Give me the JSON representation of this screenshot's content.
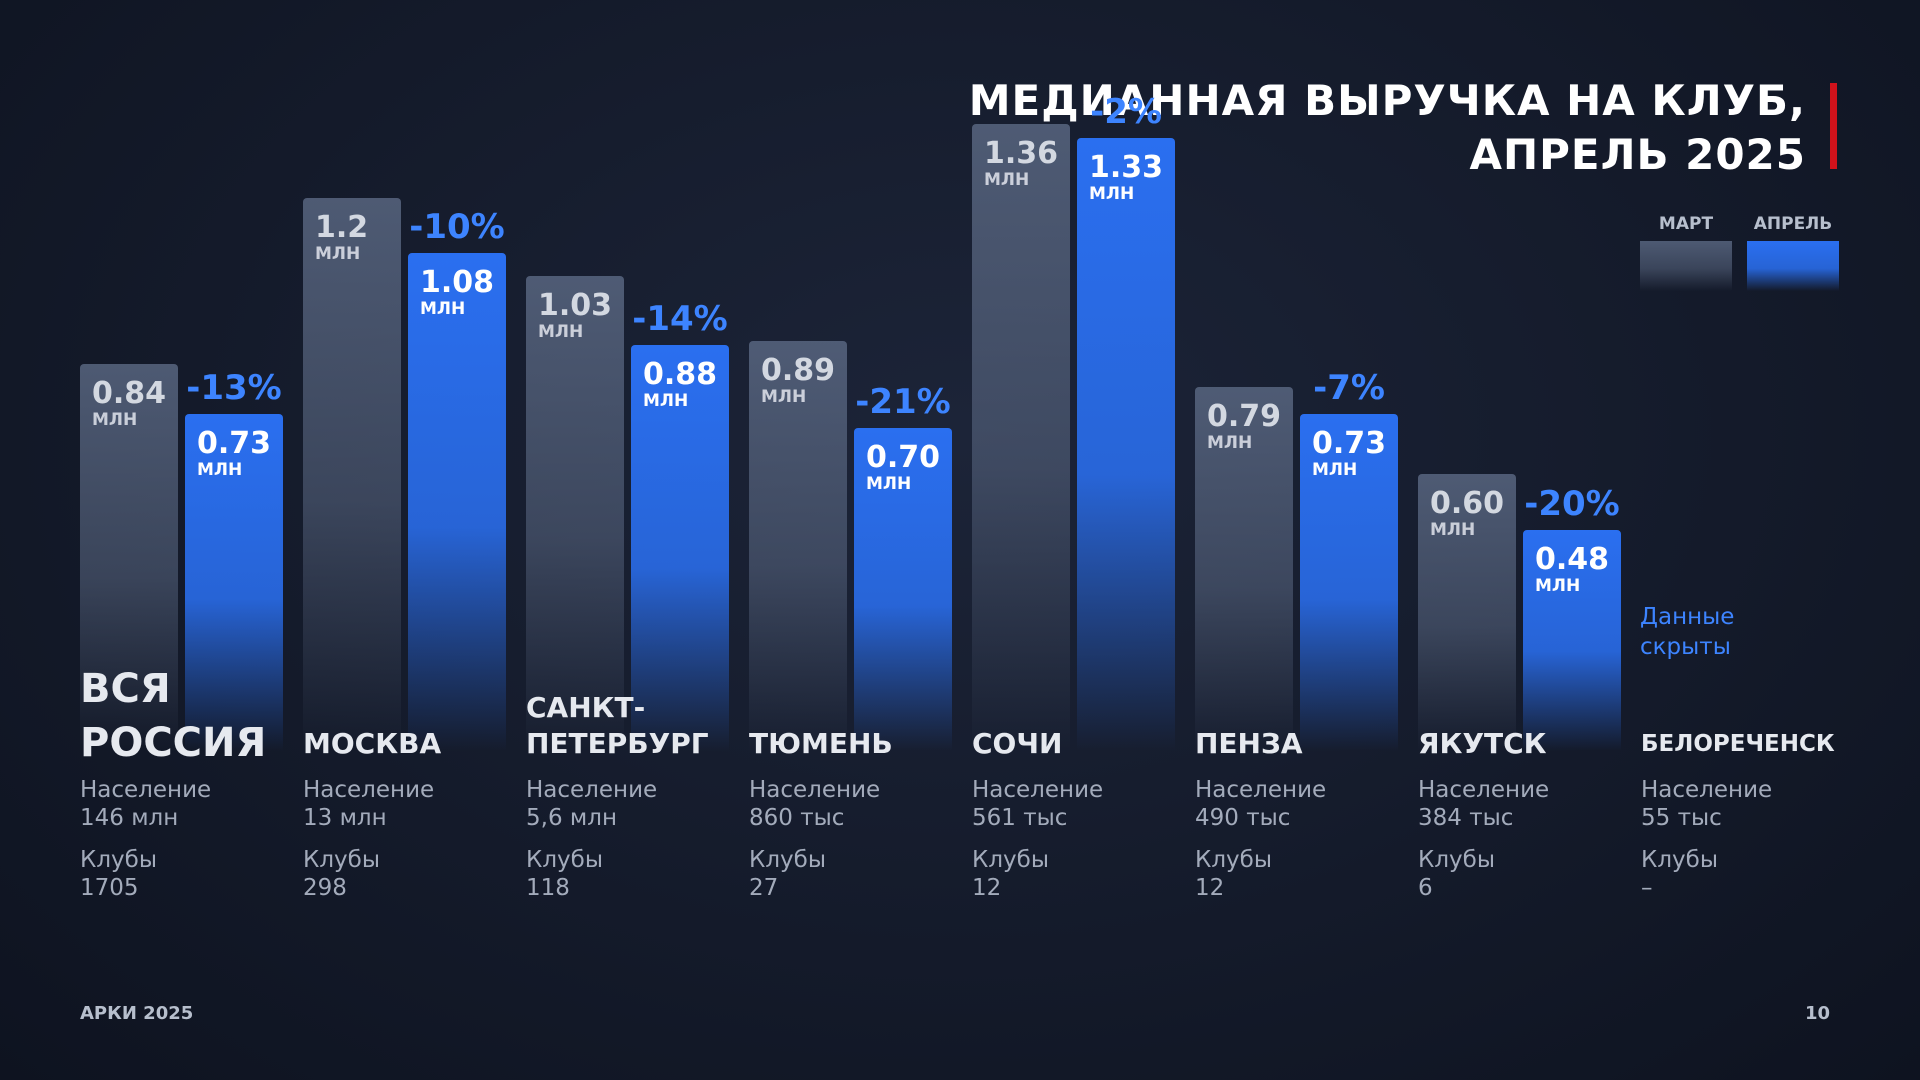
{
  "chart_data": {
    "type": "bar",
    "title": "МЕДИАННАЯ ВЫРУЧКА НА КЛУБ, АПРЕЛЬ 2025",
    "categories": [
      "ВСЯ РОССИЯ",
      "МОСКВА",
      "САНКТ-ПЕТЕРБУРГ",
      "ТЮМЕНЬ",
      "СОЧИ",
      "ПЕНЗА",
      "ЯКУТСК",
      "БЕЛОРЕЧЕНСК"
    ],
    "series": [
      {
        "name": "МАРТ",
        "color": "#5c6a85",
        "values": [
          0.84,
          1.2,
          1.03,
          0.89,
          1.36,
          0.79,
          0.6,
          null
        ],
        "value_labels": [
          "0.84",
          "1.2",
          "1.03",
          "0.89",
          "1.36",
          "0.79",
          "0.60",
          null
        ]
      },
      {
        "name": "АПРЕЛЬ",
        "color": "#2a6ff0",
        "values": [
          0.73,
          1.08,
          0.88,
          0.7,
          1.33,
          0.73,
          0.48,
          null
        ],
        "value_labels": [
          "0.73",
          "1.08",
          "0.88",
          "0.70",
          "1.33",
          "0.73",
          "0.48",
          null
        ]
      }
    ],
    "value_unit": "МЛН",
    "change_labels": [
      "-13%",
      "-10%",
      "-14%",
      "-21%",
      "-2%",
      "-7%",
      "-20%",
      null
    ],
    "hidden_note": "Данные скрыты",
    "population_label": "Население",
    "population": [
      "146 млн",
      "13 млн",
      "5,6 млн",
      "860 тыс",
      "561 тыс",
      "490 тыс",
      "384 тыс",
      "55 тыс"
    ],
    "clubs_label": "Клубы",
    "clubs": [
      "1705",
      "298",
      "118",
      "27",
      "12",
      "12",
      "6",
      "–"
    ],
    "footer": "АРКИ 2025",
    "page_number": "10"
  }
}
